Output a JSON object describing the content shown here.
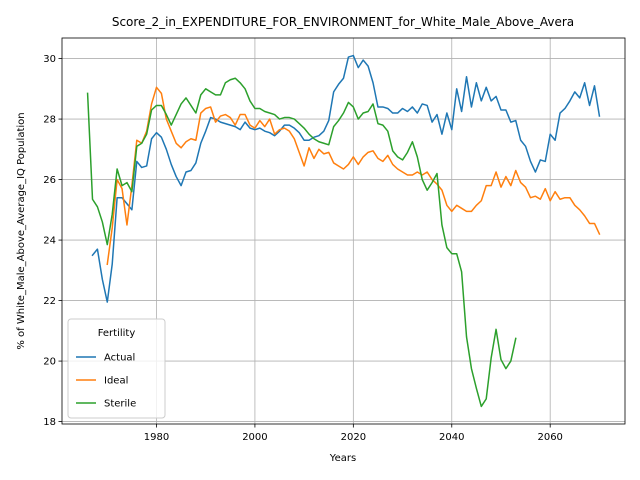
{
  "chart_data": {
    "type": "line",
    "title": "Score_2_in_EXPENDITURE_FOR_ENVIRONMENT_for_White_Male_Above_Avera",
    "xlabel": "Years",
    "ylabel": "% of White_Male_Above_Average_IQ Population",
    "legend_title": "Fertility",
    "legend_loc": "lower left",
    "grid": true,
    "x": [
      1966,
      1967,
      1968,
      1969,
      1970,
      1971,
      1972,
      1973,
      1974,
      1975,
      1976,
      1977,
      1978,
      1979,
      1980,
      1981,
      1982,
      1983,
      1984,
      1985,
      1986,
      1987,
      1988,
      1989,
      1990,
      1991,
      1992,
      1993,
      1994,
      1995,
      1996,
      1997,
      1998,
      1999,
      2000,
      2001,
      2002,
      2003,
      2004,
      2005,
      2006,
      2007,
      2008,
      2009,
      2010,
      2011,
      2012,
      2013,
      2014,
      2015,
      2016,
      2017,
      2018,
      2019,
      2020,
      2021,
      2022,
      2023,
      2024,
      2025,
      2026,
      2027,
      2028,
      2029,
      2030,
      2031,
      2032,
      2033,
      2034,
      2035,
      2036,
      2037,
      2038,
      2039,
      2040,
      2041,
      2042,
      2043,
      2044,
      2045,
      2046,
      2047,
      2048,
      2049,
      2050,
      2051,
      2052,
      2053,
      2054,
      2055,
      2056,
      2057,
      2058,
      2059,
      2060,
      2061,
      2062,
      2063,
      2064,
      2065,
      2066,
      2067,
      2068,
      2069,
      2070
    ],
    "series": [
      {
        "name": "Actual",
        "color": "#1f77b4",
        "values": [
          null,
          23.5,
          23.7,
          22.7,
          21.95,
          23.2,
          25.4,
          25.4,
          25.2,
          25.0,
          26.6,
          26.4,
          26.45,
          27.35,
          27.55,
          27.4,
          27.0,
          26.5,
          26.1,
          25.8,
          26.25,
          26.3,
          26.55,
          27.2,
          27.6,
          28.05,
          28.0,
          27.9,
          27.85,
          27.8,
          27.75,
          27.65,
          27.9,
          27.7,
          27.65,
          27.7,
          27.6,
          27.55,
          27.45,
          27.6,
          27.8,
          27.8,
          27.7,
          27.55,
          27.3,
          27.3,
          27.4,
          27.45,
          27.6,
          27.95,
          28.9,
          29.15,
          29.35,
          30.05,
          30.1,
          29.7,
          29.95,
          29.75,
          29.2,
          28.4,
          28.4,
          28.35,
          28.2,
          28.2,
          28.35,
          28.25,
          28.4,
          28.2,
          28.5,
          28.45,
          27.9,
          28.15,
          27.5,
          28.2,
          27.65,
          29.0,
          28.25,
          29.4,
          28.4,
          29.2,
          28.6,
          29.05,
          28.6,
          28.75,
          28.3,
          28.3,
          27.9,
          27.95,
          27.3,
          27.1,
          26.6,
          26.25,
          26.65,
          26.6,
          27.5,
          27.3,
          28.2,
          28.35,
          28.6,
          28.9,
          28.7,
          29.2,
          28.45,
          29.1,
          28.1
        ]
      },
      {
        "name": "Ideal",
        "color": "#ff7f0e",
        "values": [
          null,
          null,
          null,
          null,
          23.2,
          24.4,
          26.0,
          25.7,
          24.5,
          25.8,
          27.3,
          27.2,
          27.6,
          28.5,
          29.05,
          28.85,
          28.0,
          27.6,
          27.2,
          27.05,
          27.25,
          27.35,
          27.3,
          28.2,
          28.35,
          28.4,
          27.9,
          28.1,
          28.15,
          28.05,
          27.8,
          28.15,
          28.15,
          27.8,
          27.7,
          27.95,
          27.75,
          28.0,
          27.5,
          27.65,
          27.7,
          27.6,
          27.35,
          26.9,
          26.45,
          27.05,
          26.7,
          27.0,
          26.85,
          26.9,
          26.55,
          26.45,
          26.35,
          26.5,
          26.75,
          26.5,
          26.75,
          26.9,
          26.95,
          26.7,
          26.6,
          26.8,
          26.5,
          26.35,
          26.25,
          26.15,
          26.15,
          26.25,
          26.15,
          26.25,
          26.0,
          25.85,
          25.65,
          25.15,
          24.95,
          25.15,
          25.05,
          24.95,
          24.95,
          25.15,
          25.3,
          25.8,
          25.8,
          26.25,
          25.75,
          26.1,
          25.8,
          26.3,
          25.9,
          25.75,
          25.4,
          25.45,
          25.35,
          25.7,
          25.3,
          25.6,
          25.35,
          25.4,
          25.4,
          25.15,
          25.0,
          24.8,
          24.55,
          24.55,
          24.2
        ]
      },
      {
        "name": "Sterile",
        "color": "#2ca02c",
        "values": [
          28.85,
          25.35,
          25.1,
          24.6,
          23.85,
          24.85,
          26.35,
          25.8,
          25.9,
          25.6,
          27.1,
          27.2,
          27.5,
          28.3,
          28.45,
          28.45,
          28.15,
          27.8,
          28.15,
          28.5,
          28.7,
          28.45,
          28.2,
          28.8,
          29.0,
          28.9,
          28.8,
          28.8,
          29.2,
          29.3,
          29.35,
          29.2,
          29.0,
          28.6,
          28.35,
          28.35,
          28.25,
          28.2,
          28.15,
          28.0,
          28.05,
          28.05,
          28.0,
          27.85,
          27.7,
          27.5,
          27.35,
          27.25,
          27.2,
          27.15,
          27.75,
          27.95,
          28.2,
          28.55,
          28.4,
          28.0,
          28.2,
          28.25,
          28.5,
          27.85,
          27.8,
          27.6,
          26.95,
          26.75,
          26.65,
          26.9,
          27.25,
          26.75,
          26.0,
          25.65,
          25.9,
          26.2,
          24.5,
          23.75,
          23.55,
          23.55,
          22.95,
          20.8,
          19.75,
          19.1,
          18.5,
          18.75,
          20.1,
          21.05,
          20.05,
          19.75,
          20.0,
          20.75,
          null,
          null,
          null,
          null,
          null,
          null,
          null,
          null,
          null,
          null,
          null,
          null,
          null,
          null,
          null,
          null,
          null
        ]
      }
    ],
    "xlim": [
      1960.8,
      2075.2
    ],
    "ylim": [
      17.92,
      30.68
    ],
    "xticks": [
      1980,
      2000,
      2020,
      2040,
      2060
    ],
    "yticks": [
      18,
      20,
      22,
      24,
      26,
      28,
      30
    ]
  }
}
